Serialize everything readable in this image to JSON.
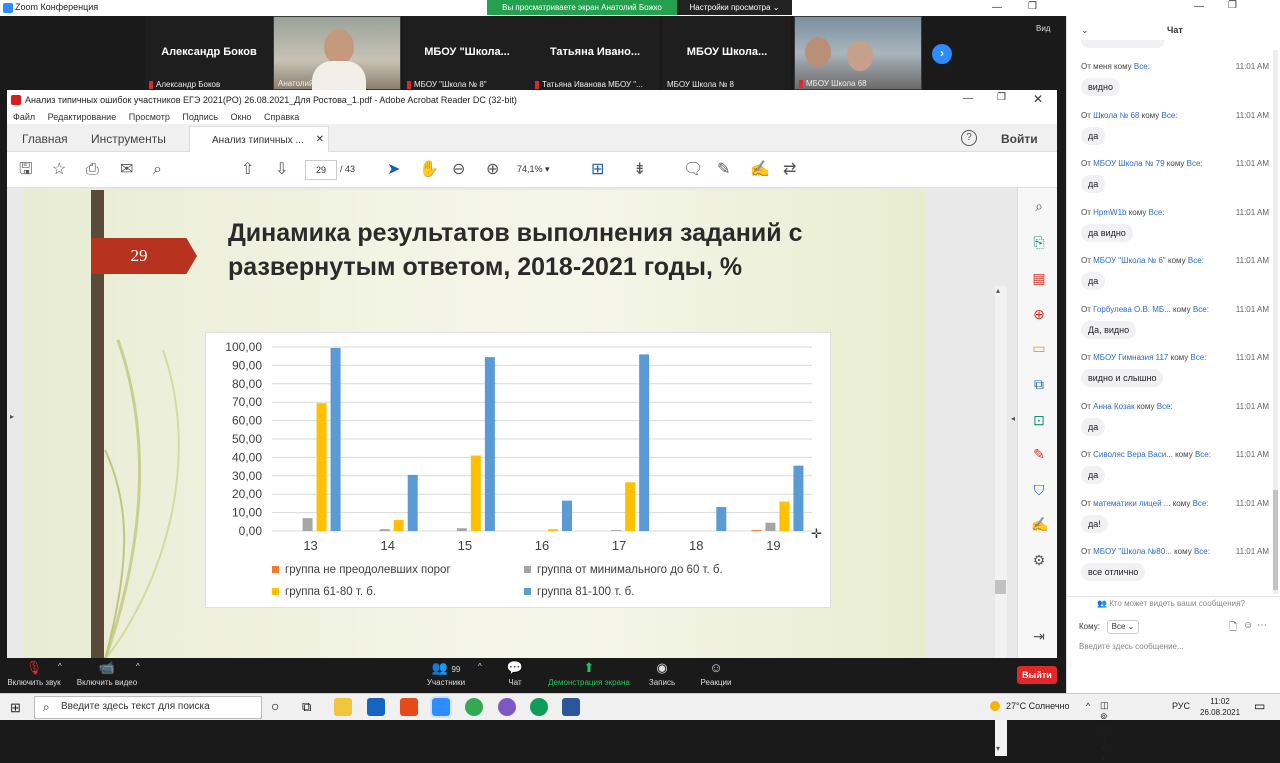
{
  "zoom_window": {
    "title": "Zoom Конференция"
  },
  "banner": {
    "text": "Вы просматриваете экран Анатолий Божко",
    "view_settings": "Настройки просмотра ⌄"
  },
  "view_button": "Вид",
  "participants": [
    {
      "name": "Александр Боков",
      "label": "Александр Боков",
      "muted": true
    },
    {
      "name": "",
      "label": "Анатолий Божко",
      "video": true
    },
    {
      "name": "МБОУ \"Школа...",
      "label": "МБОУ \"Школа № 8\"",
      "muted": true
    },
    {
      "name": "Татьяна Ивано...",
      "label": "Татьяна Иванова МБОУ \"...",
      "muted": true
    },
    {
      "name": "МБОУ Школа...",
      "label": "МБОУ Школа № 8",
      "muted": false
    },
    {
      "name": "",
      "label": "МБОУ Школа 68",
      "video": true,
      "muted": true
    }
  ],
  "acrobat": {
    "title": "Анализ типичных ошибок участников ЕГЭ 2021(РО) 26.08.2021_Для Ростова_1.pdf - Adobe Acrobat Reader DC (32-bit)",
    "menu": [
      "Файл",
      "Редактирование",
      "Просмотр",
      "Подпись",
      "Окно",
      "Справка"
    ],
    "tabs": {
      "home": "Главная",
      "tools": "Инструменты",
      "doc": "Анализ типичных ...",
      "signin": "Войти"
    },
    "page_current": "29",
    "page_total": "/ 43",
    "zoom": "74,1%"
  },
  "slide": {
    "number": "29",
    "title": "Динамика результатов выполнения заданий с развернутым ответом, 2018-2021 годы, %"
  },
  "chart_data": {
    "type": "bar",
    "categories": [
      "13",
      "14",
      "15",
      "16",
      "17",
      "18",
      "19"
    ],
    "ylim": [
      0,
      100
    ],
    "yticks": [
      "0,00",
      "10,00",
      "20,00",
      "30,00",
      "40,00",
      "50,00",
      "60,00",
      "70,00",
      "80,00",
      "90,00",
      "100,00"
    ],
    "series": [
      {
        "name": "группа не преодолевших порог",
        "color": "#ed7d31",
        "values": [
          0,
          0,
          0,
          0,
          0,
          0,
          0.5
        ]
      },
      {
        "name": "группа от минимального до 60 т. б.",
        "color": "#a5a5a5",
        "values": [
          7,
          1,
          1.5,
          0,
          0.5,
          0,
          4.5
        ]
      },
      {
        "name": "группа 61-80 т. б.",
        "color": "#ffc000",
        "values": [
          69.5,
          6,
          41,
          1,
          26.5,
          0,
          16
        ]
      },
      {
        "name": "группа 81-100 т. б.",
        "color": "#5b9bd5",
        "values": [
          99.5,
          30.5,
          94.5,
          16.5,
          96,
          13,
          35.5
        ]
      }
    ]
  },
  "bottom_bar": {
    "mute": "Включить звук",
    "video": "Включить видео",
    "participants": "Участники",
    "participants_count": "99",
    "chat": "Чат",
    "share": "Демонстрация экрана",
    "record": "Запись",
    "reactions": "Реакции",
    "leave": "Выйти"
  },
  "chat": {
    "title": "Чат",
    "messages": [
      {
        "prefix": "От меня",
        "sender": "",
        "to": "Все:",
        "time": "11:01 AM",
        "text": "видно"
      },
      {
        "prefix": "От",
        "sender": "Школа № 68",
        "to": "Все:",
        "time": "11:01 AM",
        "text": "да"
      },
      {
        "prefix": "От",
        "sender": "МБОУ Школа № 79",
        "to": "Все:",
        "time": "11:01 AM",
        "text": "да"
      },
      {
        "prefix": "От",
        "sender": "HpmW1b",
        "to": "Все:",
        "time": "11:01 AM",
        "text": "да видно"
      },
      {
        "prefix": "От",
        "sender": "МБОУ \"Школа № 6\"",
        "to": "Все:",
        "time": "11:01 AM",
        "text": "да"
      },
      {
        "prefix": "От",
        "sender": "Горбулева О.В. МБ...",
        "to": "Все:",
        "time": "11:01 AM",
        "text": "Да, видно"
      },
      {
        "prefix": "От",
        "sender": "МБОУ Гимназия 117",
        "to": "Все:",
        "time": "11:01 AM",
        "text": "видно и слышно"
      },
      {
        "prefix": "От",
        "sender": "Анна Козак",
        "to": "Все:",
        "time": "11:01 AM",
        "text": "да"
      },
      {
        "prefix": "От",
        "sender": "Сиволяс Вера Васи...",
        "to": "Все:",
        "time": "11:01 AM",
        "text": "да"
      },
      {
        "prefix": "От",
        "sender": "математики лицей ...",
        "to": "Все:",
        "time": "11:01 AM",
        "text": "да!"
      },
      {
        "prefix": "От",
        "sender": "МБОУ \"Школа №80...",
        "to": "Все:",
        "time": "11:01 AM",
        "text": "все отлично"
      }
    ],
    "who_sees": "Кто может видеть ваши сообщения?",
    "to_label": "Кому:",
    "recipient": "Все",
    "placeholder": "Введите здесь сообщение..."
  },
  "taskbar": {
    "search_placeholder": "Введите здесь текст для поиска",
    "weather": "27°C Солнечно",
    "lang": "РУС",
    "time": "11:02",
    "date": "26.08.2021"
  }
}
